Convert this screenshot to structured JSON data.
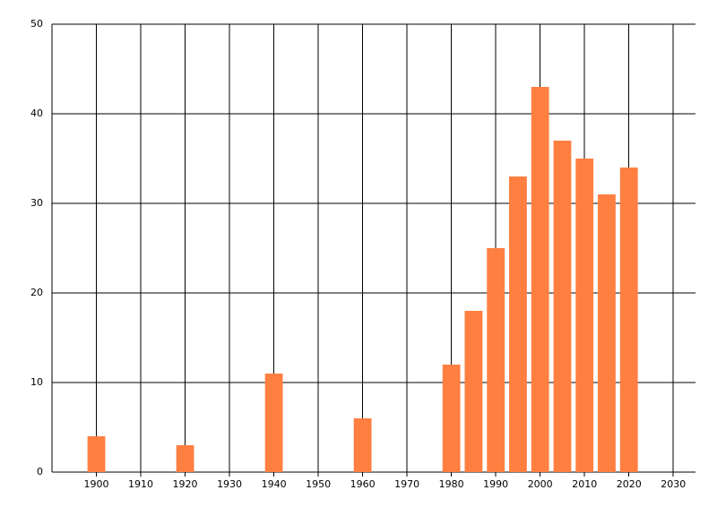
{
  "chart_data": {
    "type": "bar",
    "x": [
      1900,
      1920,
      1940,
      1960,
      1980,
      1985,
      1990,
      1995,
      2000,
      2005,
      2010,
      2015,
      2020
    ],
    "values": [
      4,
      3,
      11,
      6,
      12,
      18,
      25,
      33,
      43,
      37,
      35,
      31,
      34
    ],
    "color": "#ff7f40",
    "xlim": [
      1890,
      2035
    ],
    "xticks": [
      1900,
      1910,
      1920,
      1930,
      1940,
      1950,
      1960,
      1970,
      1980,
      1990,
      2000,
      2010,
      2020,
      2030
    ],
    "ylim": [
      0,
      50
    ],
    "yticks": [
      0,
      10,
      20,
      30,
      40,
      50
    ],
    "grid": true
  }
}
